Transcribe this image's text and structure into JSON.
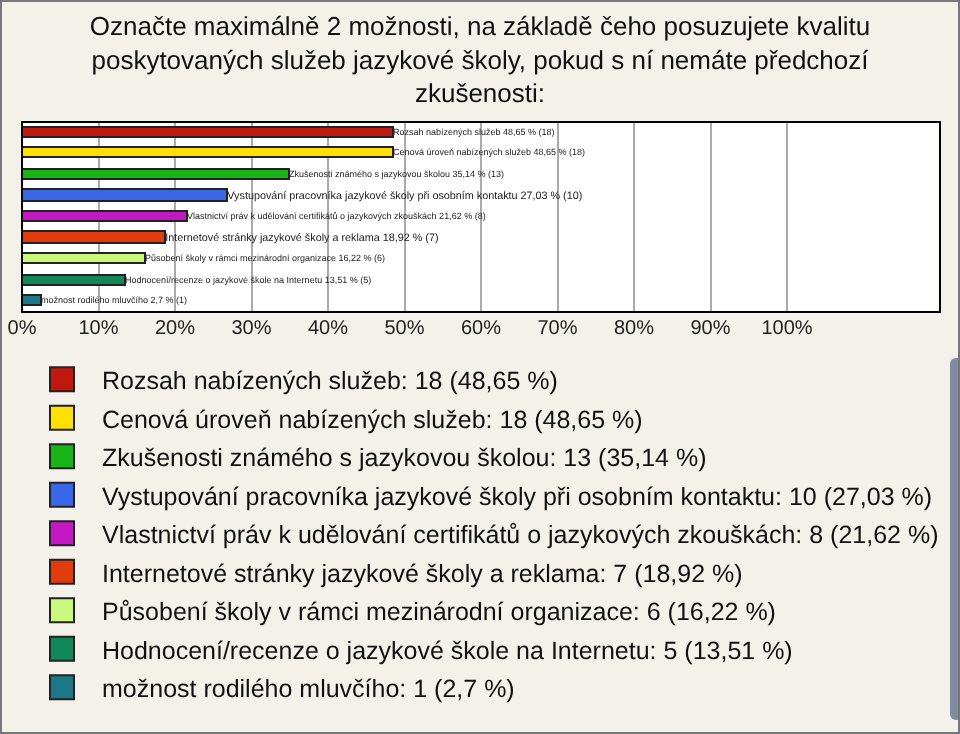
{
  "chart_data": {
    "type": "bar",
    "orientation": "horizontal",
    "title": "Označte maximálně 2 možnosti, na základě čeho posuzujete kvalitu poskytovaných služeb jazykové školy, pokud s ní nemáte předchozí zkušenosti:",
    "categories": [
      null,
      null,
      null,
      null,
      null,
      null,
      null,
      null,
      null
    ],
    "series": [
      {
        "name": "Rozsah nabízených služeb: 18 (48,65 %)",
        "color": "#c0180c",
        "values": [
          48.65,
          null,
          null,
          null,
          null,
          null,
          null,
          null,
          null
        ],
        "value_labels": [
          "Rozsah nabízených služeb 48,65 % (18)",
          null,
          null,
          null,
          null,
          null,
          null,
          null,
          null
        ]
      },
      {
        "name": "Cenová úroveň nabízených služeb: 18 (48,65 %)",
        "color": "#ffe000",
        "values": [
          null,
          48.65,
          null,
          null,
          null,
          null,
          null,
          null,
          null
        ],
        "value_labels": [
          null,
          "Cenová úroveň nabízených služeb 48,65 % (18)",
          null,
          null,
          null,
          null,
          null,
          null,
          null
        ]
      },
      {
        "name": "Zkušenosti známého s jazykovou školou: 13 (35,14 %)",
        "color": "#18b418",
        "values": [
          null,
          null,
          35.14,
          null,
          null,
          null,
          null,
          null,
          null
        ],
        "value_labels": [
          null,
          null,
          "Zkušenosti známého s jazykovou školou 35,14 % (13)",
          null,
          null,
          null,
          null,
          null,
          null
        ]
      },
      {
        "name": "Vystupování pracovníka jazykové školy při osobním kontaktu: 10 (27,03 %)",
        "color": "#3a66e8",
        "values": [
          null,
          null,
          null,
          27.03,
          null,
          null,
          null,
          null,
          null
        ],
        "value_labels": [
          null,
          null,
          null,
          "Vystupování pracovníka jazykové školy při osobním kontaktu 27,03 % (10)",
          null,
          null,
          null,
          null,
          null
        ]
      },
      {
        "name": "Vlastnictví práv k udělování certifikátů o jazykových zkouškách: 8 (21,62 %)",
        "color": "#c418c4",
        "values": [
          null,
          null,
          null,
          null,
          21.62,
          null,
          null,
          null,
          null
        ],
        "value_labels": [
          null,
          null,
          null,
          null,
          "Vlastnictví práv k udělování certifikátů o jazykových zkouškách 21,62 % (8)",
          null,
          null,
          null,
          null
        ]
      },
      {
        "name": "Internetové stránky jazykové školy a reklama: 7 (18,92 %)",
        "color": "#e03c0c",
        "values": [
          null,
          null,
          null,
          null,
          null,
          18.92,
          null,
          null,
          null
        ],
        "value_labels": [
          null,
          null,
          null,
          null,
          null,
          "Internetové stránky jazykové školy a reklama 18,92 % (7)",
          null,
          null,
          null
        ]
      },
      {
        "name": "Působení školy v rámci mezinárodní organizace: 6 (16,22 %)",
        "color": "#c8f87c",
        "values": [
          null,
          null,
          null,
          null,
          null,
          null,
          16.22,
          null,
          null
        ],
        "value_labels": [
          null,
          null,
          null,
          null,
          null,
          null,
          "Působení školy v rámci mezinárodní organizace 16,22 % (6)",
          null,
          null
        ]
      },
      {
        "name": "Hodnocení/recenze o jazykové škole na Internetu: 5 (13,51 %)",
        "color": "#12885a",
        "values": [
          null,
          null,
          null,
          null,
          null,
          null,
          null,
          13.51,
          null
        ],
        "value_labels": [
          null,
          null,
          null,
          null,
          null,
          null,
          null,
          "Hodnocení/recenze o jazykové škole na Internetu 13,51 % (5)",
          null
        ]
      },
      {
        "name": "možnost rodilého mluvčího: 1 (2,7 %)",
        "color": "#1c7888",
        "values": [
          null,
          null,
          null,
          null,
          null,
          null,
          null,
          null,
          2.7
        ],
        "value_labels": [
          null,
          null,
          null,
          null,
          null,
          null,
          null,
          null,
          "možnost rodilého mluvčího 2,7 % (1)"
        ]
      }
    ],
    "xlim": [
      0,
      120
    ],
    "xticks": [
      {
        "value": 0,
        "label": "0%"
      },
      {
        "value": 10,
        "label": "10%"
      },
      {
        "value": 20,
        "label": "20%"
      },
      {
        "value": 30,
        "label": "30%"
      },
      {
        "value": 40,
        "label": "40%"
      },
      {
        "value": 50,
        "label": "50%"
      },
      {
        "value": 60,
        "label": "60%"
      },
      {
        "value": 70,
        "label": "70%"
      },
      {
        "value": 80,
        "label": "80%"
      },
      {
        "value": 90,
        "label": "90%"
      },
      {
        "value": 100,
        "label": "100%"
      }
    ],
    "grid": "x",
    "legend": "bottom",
    "tick_labels": "x"
  }
}
